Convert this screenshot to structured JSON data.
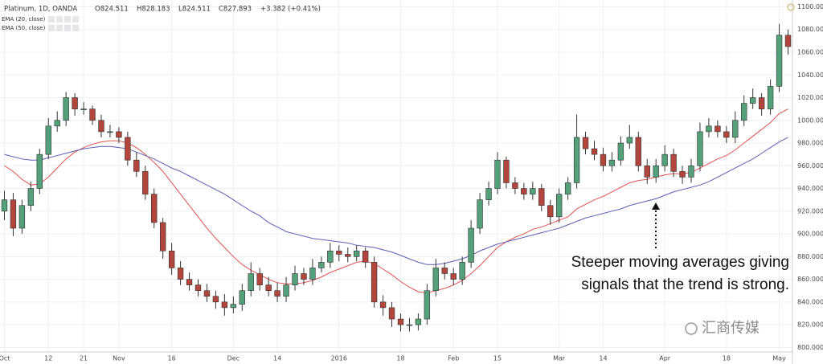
{
  "chart_data": {
    "type": "candlestick",
    "title": "Platinum, 1D, OANDA",
    "ohlc_labels": [
      "O824.511",
      "H828.183",
      "L824.511",
      "C827.893",
      "+3.382 (+0.41%)"
    ],
    "annotation": [
      "Steeper moving averages giving",
      "signals that the trend is strong."
    ],
    "watermark": "汇商传媒",
    "up_color": "#53a07a",
    "down_color": "#b2463d",
    "grid": true,
    "xlim": [
      -0.5,
      89.5
    ],
    "xticks": [
      {
        "value": 0,
        "label": "Oct"
      },
      {
        "value": 5,
        "label": "12"
      },
      {
        "value": 9,
        "label": "21"
      },
      {
        "value": 13,
        "label": "Nov"
      },
      {
        "value": 19,
        "label": "16"
      },
      {
        "value": 26,
        "label": "Dec"
      },
      {
        "value": 31,
        "label": "14"
      },
      {
        "value": 38,
        "label": "2016"
      },
      {
        "value": 45,
        "label": "18"
      },
      {
        "value": 51,
        "label": "Feb"
      },
      {
        "value": 56,
        "label": "15"
      },
      {
        "value": 63,
        "label": "Mar"
      },
      {
        "value": 68,
        "label": "14"
      },
      {
        "value": 75,
        "label": "Apr"
      },
      {
        "value": 82,
        "label": "18"
      },
      {
        "value": 88,
        "label": "May"
      }
    ],
    "ylim": [
      796,
      1106
    ],
    "yticks": [
      {
        "value": 800,
        "label": "800.000"
      },
      {
        "value": 820,
        "label": "820.000"
      },
      {
        "value": 840,
        "label": "840.000"
      },
      {
        "value": 860,
        "label": "860.000"
      },
      {
        "value": 880,
        "label": "880.000"
      },
      {
        "value": 900,
        "label": "900.000"
      },
      {
        "value": 920,
        "label": "920.000"
      },
      {
        "value": 940,
        "label": "940.000"
      },
      {
        "value": 960,
        "label": "960.000"
      },
      {
        "value": 980,
        "label": "980.000"
      },
      {
        "value": 1000,
        "label": "1000.000"
      },
      {
        "value": 1020,
        "label": "1020.000"
      },
      {
        "value": 1040,
        "label": "1040.000"
      },
      {
        "value": 1060,
        "label": "1060.000"
      },
      {
        "value": 1080,
        "label": "1080.000"
      },
      {
        "value": 1100,
        "label": "1100.000"
      }
    ],
    "open": [
      920,
      930,
      905,
      925,
      940,
      970,
      995,
      1000,
      1020,
      1010,
      1010,
      1000,
      990,
      990,
      985,
      965,
      955,
      935,
      910,
      885,
      870,
      860,
      855,
      850,
      845,
      840,
      835,
      838,
      850,
      865,
      855,
      850,
      845,
      855,
      865,
      860,
      870,
      875,
      885,
      882,
      880,
      885,
      875,
      840,
      835,
      825,
      820,
      820,
      825,
      850,
      870,
      865,
      860,
      875,
      905,
      930,
      940,
      965,
      945,
      940,
      935,
      940,
      925,
      915,
      935,
      945,
      985,
      975,
      970,
      960,
      965,
      980,
      985,
      960,
      950,
      960,
      970,
      955,
      950,
      960,
      990,
      995,
      990,
      985,
      1000,
      1015,
      1020,
      1010,
      1030,
      1075
    ],
    "high": [
      938,
      936,
      930,
      946,
      975,
      1002,
      1008,
      1025,
      1024,
      1016,
      1013,
      1005,
      996,
      994,
      990,
      972,
      960,
      940,
      914,
      892,
      876,
      866,
      860,
      856,
      850,
      847,
      845,
      856,
      875,
      870,
      862,
      857,
      862,
      872,
      870,
      878,
      880,
      892,
      890,
      888,
      890,
      888,
      880,
      846,
      840,
      830,
      826,
      830,
      856,
      878,
      875,
      870,
      880,
      912,
      936,
      946,
      972,
      968,
      950,
      945,
      946,
      944,
      930,
      940,
      950,
      1005,
      990,
      982,
      976,
      972,
      986,
      996,
      990,
      966,
      966,
      978,
      975,
      960,
      966,
      998,
      1002,
      1000,
      995,
      1008,
      1022,
      1028,
      1024,
      1036,
      1085,
      1080
    ],
    "low": [
      912,
      898,
      900,
      920,
      935,
      966,
      990,
      995,
      1004,
      1005,
      996,
      985,
      985,
      980,
      960,
      950,
      930,
      905,
      878,
      864,
      855,
      850,
      845,
      840,
      834,
      828,
      830,
      832,
      845,
      850,
      845,
      840,
      840,
      850,
      855,
      855,
      866,
      870,
      876,
      875,
      876,
      870,
      835,
      828,
      818,
      814,
      814,
      815,
      820,
      845,
      860,
      855,
      855,
      870,
      900,
      925,
      935,
      940,
      935,
      930,
      930,
      920,
      908,
      910,
      930,
      940,
      970,
      965,
      955,
      955,
      960,
      975,
      955,
      944,
      945,
      955,
      950,
      944,
      945,
      955,
      985,
      985,
      980,
      980,
      995,
      1010,
      1004,
      1005,
      1025,
      1058
    ],
    "close": [
      930,
      905,
      925,
      940,
      970,
      995,
      1000,
      1020,
      1010,
      1010,
      1000,
      990,
      990,
      985,
      965,
      955,
      935,
      910,
      885,
      870,
      860,
      855,
      850,
      845,
      840,
      835,
      838,
      850,
      865,
      855,
      850,
      845,
      855,
      865,
      860,
      870,
      875,
      885,
      882,
      880,
      885,
      875,
      840,
      835,
      825,
      820,
      820,
      825,
      850,
      870,
      865,
      860,
      875,
      905,
      930,
      940,
      965,
      945,
      940,
      935,
      940,
      925,
      915,
      935,
      945,
      985,
      975,
      970,
      960,
      965,
      980,
      985,
      960,
      950,
      960,
      970,
      955,
      950,
      960,
      990,
      995,
      990,
      985,
      1000,
      1015,
      1020,
      1010,
      1030,
      1075,
      1065
    ],
    "series": [
      {
        "name": "EMA (20, close)",
        "color": "#e0524f",
        "values": [
          960,
          955,
          948,
          943,
          944,
          950,
          958,
          966,
          972,
          976,
          979,
          981,
          982,
          982,
          980,
          976,
          970,
          963,
          955,
          945,
          935,
          925,
          915,
          905,
          896,
          888,
          880,
          873,
          868,
          864,
          860,
          857,
          856,
          856,
          857,
          859,
          862,
          866,
          869,
          872,
          875,
          876,
          874,
          869,
          864,
          858,
          853,
          849,
          848,
          850,
          852,
          855,
          859,
          865,
          872,
          880,
          888,
          893,
          897,
          900,
          904,
          906,
          909,
          912,
          915,
          922,
          926,
          930,
          933,
          937,
          941,
          945,
          947,
          948,
          950,
          952,
          953,
          953,
          954,
          958,
          962,
          966,
          969,
          974,
          980,
          986,
          992,
          998,
          1006,
          1010
        ]
      },
      {
        "name": "EMA (50, close)",
        "color": "#5a5fb4",
        "values": [
          970,
          968,
          966,
          965,
          965,
          967,
          969,
          971,
          973,
          975,
          976,
          977,
          977,
          976,
          975,
          972,
          969,
          966,
          962,
          958,
          955,
          951,
          947,
          943,
          939,
          935,
          930,
          925,
          920,
          916,
          910,
          906,
          902,
          900,
          898,
          896,
          895,
          894,
          893,
          892,
          890,
          889,
          888,
          886,
          884,
          881,
          878,
          875,
          873,
          873,
          874,
          876,
          878,
          881,
          885,
          888,
          891,
          893,
          895,
          897,
          899,
          901,
          903,
          905,
          908,
          911,
          914,
          916,
          918,
          920,
          922,
          925,
          927,
          929,
          931,
          934,
          937,
          939,
          941,
          943,
          946,
          950,
          954,
          958,
          962,
          966,
          971,
          976,
          981,
          985
        ]
      }
    ]
  }
}
